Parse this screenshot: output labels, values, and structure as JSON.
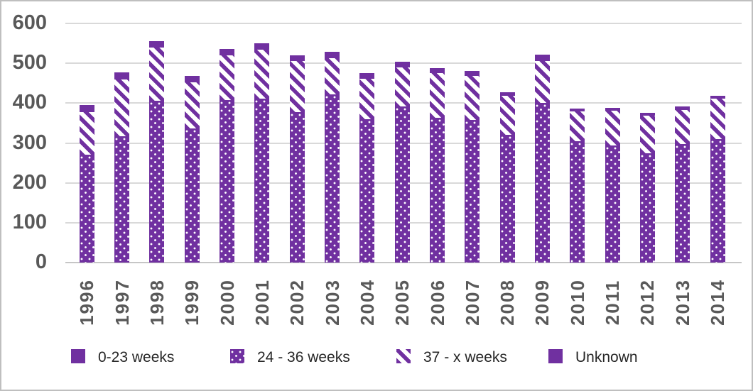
{
  "colors": {
    "bar_purple": "#7030a0",
    "axis_label_gray": "#595959",
    "gridline_gray": "#d9d9d9",
    "legend_text": "#262626",
    "background": "#ffffff"
  },
  "chart_data": {
    "type": "bar",
    "subtype": "stacked-vertical",
    "title": "",
    "xlabel": "",
    "ylabel": "",
    "ylim": [
      0,
      600
    ],
    "yticks": [
      0,
      100,
      200,
      300,
      400,
      500,
      600
    ],
    "grid": "horizontal",
    "legend_position": "bottom",
    "categories": [
      "1996",
      "1997",
      "1998",
      "1999",
      "2000",
      "2001",
      "2002",
      "2003",
      "2004",
      "2005",
      "2006",
      "2007",
      "2008",
      "2009",
      "2010",
      "2011",
      "2012",
      "2013",
      "2014"
    ],
    "series": [
      {
        "name": "0-23 weeks",
        "pattern": "solid",
        "values": [
          0,
          0,
          0,
          0,
          0,
          0,
          0,
          0,
          0,
          0,
          0,
          0,
          0,
          0,
          0,
          0,
          0,
          0,
          0
        ]
      },
      {
        "name": "24 - 36 weeks",
        "pattern": "dotted",
        "values": [
          270,
          317,
          406,
          336,
          407,
          411,
          378,
          422,
          360,
          391,
          364,
          357,
          320,
          401,
          305,
          293,
          275,
          298,
          310
        ]
      },
      {
        "name": "37 - x weeks",
        "pattern": "striped",
        "values": [
          108,
          143,
          134,
          116,
          113,
          124,
          127,
          91,
          101,
          98,
          111,
          112,
          98,
          105,
          74,
          88,
          93,
          85,
          101
        ]
      },
      {
        "name": "Unknown",
        "pattern": "solid",
        "values": [
          17,
          18,
          15,
          16,
          16,
          16,
          15,
          15,
          15,
          15,
          12,
          12,
          10,
          15,
          8,
          8,
          8,
          8,
          8
        ]
      }
    ],
    "totals": [
      395,
      478,
      555,
      468,
      536,
      551,
      520,
      528,
      476,
      504,
      487,
      481,
      428,
      521,
      387,
      389,
      376,
      391,
      419
    ]
  }
}
